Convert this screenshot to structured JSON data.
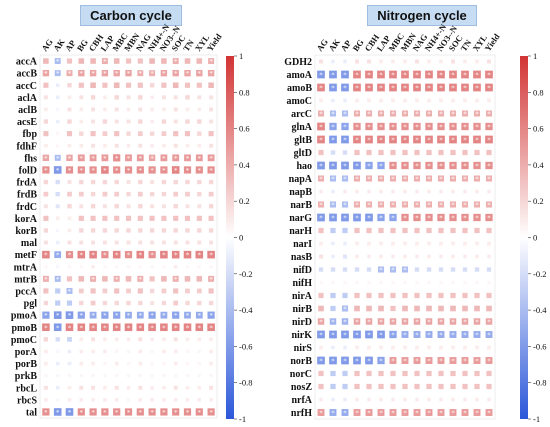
{
  "chart_data": [
    {
      "type": "heatmap",
      "title": "Carbon cycle",
      "columns": [
        "AG",
        "AK",
        "AP",
        "BG",
        "CBH",
        "LAP",
        "MBC",
        "MBN",
        "NAG",
        "NH4+-N",
        "NO3--N",
        "SOC",
        "TN",
        "XYL",
        "Yield"
      ],
      "rows": [
        "accA",
        "accB",
        "accC",
        "aclA",
        "aclB",
        "acsE",
        "fbp",
        "fdhF",
        "fhs",
        "folD",
        "frdA",
        "frdB",
        "frdC",
        "korA",
        "korB",
        "mal",
        "metF",
        "mtrA",
        "mtrB",
        "pccA",
        "pgl",
        "pmoA",
        "pmoB",
        "pmoC",
        "porA",
        "porB",
        "prkB",
        "rbcL",
        "rbcS",
        "tal"
      ],
      "colorbar": {
        "min": -1,
        "max": 1,
        "ticks": [
          1,
          0.8,
          0.6,
          0.4,
          0.2,
          0,
          -0.2,
          -0.4,
          -0.6,
          -0.8,
          -1
        ]
      },
      "significance_mark": "*",
      "values": [
        [
          0.35,
          -0.4,
          0.3,
          0.35,
          0.35,
          0.4,
          0.35,
          0.3,
          0.3,
          0.35,
          0.35,
          0.4,
          0.35,
          0.35,
          0.4
        ],
        [
          0.45,
          -0.4,
          0.4,
          0.45,
          0.45,
          0.45,
          0.45,
          0.45,
          0.4,
          0.4,
          0.45,
          0.45,
          0.45,
          0.45,
          0.45
        ],
        [
          0.3,
          -0.1,
          0.2,
          0.3,
          0.35,
          0.3,
          0.35,
          0.3,
          0.3,
          0.2,
          0.3,
          0.35,
          0.3,
          0.3,
          0.35
        ],
        [
          0.15,
          -0.1,
          0.1,
          0.15,
          0.2,
          0.1,
          0.2,
          0.15,
          0.2,
          0.1,
          0.15,
          0.15,
          0.2,
          0.15,
          0.15
        ],
        [
          0.1,
          -0.05,
          0.15,
          0.1,
          0.15,
          0.1,
          0.15,
          0.1,
          0.15,
          0.1,
          0.1,
          0.15,
          0.1,
          0.1,
          0.15
        ],
        [
          0.2,
          -0.1,
          0.2,
          0.1,
          0.15,
          0.2,
          0.15,
          0.15,
          0.2,
          0.1,
          0.2,
          0.15,
          0.2,
          0.2,
          0.15
        ],
        [
          0.3,
          0.05,
          0.3,
          0.2,
          0.3,
          0.25,
          0.3,
          0.2,
          0.25,
          0.2,
          0.25,
          0.3,
          0.3,
          0.2,
          0.3
        ],
        [
          0.1,
          0.05,
          0.1,
          0.1,
          0.15,
          0.1,
          0.15,
          0.1,
          0.15,
          0.1,
          0.1,
          0.15,
          0.1,
          0.1,
          0.15
        ],
        [
          0.45,
          -0.4,
          0.45,
          0.5,
          0.5,
          0.5,
          0.55,
          0.5,
          0.5,
          0.45,
          0.5,
          0.5,
          0.5,
          0.5,
          0.5
        ],
        [
          0.55,
          -0.6,
          0.55,
          0.55,
          0.55,
          0.6,
          0.55,
          0.55,
          0.55,
          0.55,
          0.55,
          0.6,
          0.55,
          0.55,
          0.55
        ],
        [
          0.2,
          -0.2,
          0.15,
          0.2,
          0.2,
          0.2,
          0.2,
          0.15,
          0.2,
          0.15,
          0.2,
          0.2,
          0.2,
          0.2,
          0.2
        ],
        [
          0.25,
          -0.2,
          0.25,
          0.25,
          0.2,
          0.25,
          0.25,
          0.2,
          0.25,
          0.2,
          0.2,
          0.25,
          0.25,
          0.2,
          0.25
        ],
        [
          0.15,
          -0.15,
          0.2,
          0.15,
          0.2,
          0.15,
          0.2,
          0.15,
          0.2,
          0.15,
          0.15,
          0.2,
          0.15,
          0.15,
          0.2
        ],
        [
          0.3,
          0.1,
          0.1,
          0.3,
          0.3,
          0.3,
          0.3,
          0.3,
          0.3,
          0.3,
          0.3,
          0.3,
          0.3,
          0.3,
          0.3
        ],
        [
          0.2,
          -0.05,
          0.1,
          0.2,
          0.2,
          0.2,
          0.2,
          0.2,
          0.2,
          0.2,
          0.2,
          0.2,
          0.2,
          0.2,
          0.2
        ],
        [
          0.15,
          -0.1,
          0.15,
          0.15,
          0.15,
          0.15,
          0.15,
          0.15,
          0.15,
          0.15,
          0.15,
          0.15,
          0.15,
          0.15,
          0.15
        ],
        [
          0.6,
          -0.5,
          0.55,
          0.6,
          0.6,
          0.55,
          0.6,
          0.55,
          0.6,
          0.55,
          0.6,
          0.6,
          0.6,
          0.6,
          0.6
        ],
        [
          0.05,
          -0.05,
          0.05,
          0.05,
          0.1,
          0.05,
          0.05,
          0.05,
          0.05,
          0.05,
          0.05,
          0.1,
          0.05,
          0.05,
          0.05
        ],
        [
          0.4,
          -0.4,
          0.3,
          0.35,
          0.4,
          0.35,
          0.4,
          0.35,
          0.4,
          0.3,
          0.35,
          0.4,
          0.35,
          0.35,
          0.4
        ],
        [
          0.3,
          -0.3,
          -0.4,
          0.25,
          0.3,
          0.25,
          0.3,
          0.25,
          0.3,
          0.2,
          0.25,
          0.3,
          0.25,
          0.25,
          0.3
        ],
        [
          0.2,
          -0.3,
          -0.3,
          0.2,
          0.25,
          0.2,
          0.2,
          0.2,
          0.2,
          0.15,
          0.2,
          0.25,
          0.2,
          0.2,
          0.2
        ],
        [
          -0.55,
          -0.6,
          -0.6,
          -0.55,
          -0.5,
          -0.55,
          -0.55,
          -0.5,
          -0.5,
          -0.55,
          -0.5,
          -0.55,
          -0.5,
          -0.5,
          -0.55
        ],
        [
          0.6,
          -0.6,
          0.6,
          0.6,
          0.6,
          0.6,
          0.6,
          0.6,
          0.6,
          0.6,
          0.6,
          0.6,
          0.6,
          0.6,
          0.6
        ],
        [
          0.2,
          -0.2,
          -0.25,
          0.1,
          0.15,
          0.1,
          0.1,
          0.1,
          0.15,
          0.1,
          0.1,
          0.15,
          0.1,
          0.1,
          0.1
        ],
        [
          0.1,
          -0.05,
          -0.1,
          0.1,
          0.1,
          0.1,
          0.05,
          0.05,
          0.1,
          0.05,
          0.1,
          0.1,
          0.05,
          0.05,
          0.1
        ],
        [
          0.1,
          -0.1,
          -0.1,
          0.1,
          0.1,
          0.05,
          0.1,
          0.05,
          0.1,
          0.05,
          0.05,
          0.1,
          0.05,
          0.05,
          0.1
        ],
        [
          0.05,
          -0.05,
          0.05,
          0.05,
          0.05,
          0.05,
          0.05,
          0.05,
          0.05,
          0.05,
          0.05,
          0.05,
          0.05,
          0.05,
          0.05
        ],
        [
          0.15,
          -0.1,
          0.1,
          0.15,
          0.15,
          0.1,
          0.15,
          0.1,
          0.15,
          0.1,
          0.1,
          0.15,
          0.1,
          0.1,
          0.15
        ],
        [
          0.1,
          -0.05,
          0.1,
          0.1,
          0.1,
          0.1,
          0.1,
          0.05,
          0.1,
          0.1,
          0.1,
          0.1,
          0.1,
          0.1,
          0.1
        ],
        [
          0.55,
          -0.6,
          -0.6,
          0.55,
          0.55,
          0.55,
          0.55,
          0.55,
          0.55,
          0.55,
          0.55,
          0.55,
          0.55,
          0.55,
          0.55
        ]
      ]
    },
    {
      "type": "heatmap",
      "title": "Nitrogen cycle",
      "columns": [
        "AG",
        "AK",
        "AP",
        "BG",
        "CBH",
        "LAP",
        "MBC",
        "MBN",
        "NAG",
        "NH4+-N",
        "NO3--N",
        "SOC",
        "TN",
        "XYL",
        "Yield"
      ],
      "rows": [
        "GDH2",
        "amoA",
        "amoB",
        "amoC",
        "arcC",
        "glnA",
        "gltB",
        "gltD",
        "hao",
        "napA",
        "napB",
        "narB",
        "narG",
        "narH",
        "narI",
        "nasB",
        "nifD",
        "nifH",
        "nirA",
        "nirB",
        "nirD",
        "nirK",
        "nirS",
        "norB",
        "norC",
        "nosZ",
        "nrfA",
        "nrfH"
      ],
      "colorbar": {
        "min": -1,
        "max": 1,
        "ticks": [
          1,
          0.8,
          0.6,
          0.4,
          0.2,
          0,
          -0.2,
          -0.4,
          -0.6,
          -0.8,
          -1
        ]
      },
      "significance_mark": "*",
      "values": [
        [
          0.15,
          -0.1,
          -0.1,
          0.15,
          0.15,
          0.1,
          0.1,
          0.1,
          0.15,
          0.1,
          0.1,
          0.15,
          0.1,
          0.1,
          0.15
        ],
        [
          -0.6,
          -0.6,
          -0.6,
          0.6,
          0.6,
          0.6,
          0.6,
          0.6,
          0.6,
          0.6,
          0.6,
          0.6,
          0.6,
          0.6,
          0.6
        ],
        [
          0.6,
          -0.6,
          -0.6,
          0.6,
          0.6,
          0.6,
          0.6,
          0.6,
          0.6,
          0.6,
          0.6,
          0.6,
          0.6,
          0.6,
          0.6
        ],
        [
          0.1,
          -0.1,
          -0.1,
          0.1,
          0.1,
          0.1,
          0.1,
          0.1,
          0.1,
          0.1,
          0.1,
          0.1,
          0.1,
          0.1,
          0.1
        ],
        [
          0.4,
          -0.4,
          -0.4,
          0.4,
          0.4,
          0.4,
          0.4,
          0.4,
          0.4,
          0.4,
          0.4,
          0.4,
          0.4,
          0.4,
          0.4
        ],
        [
          0.6,
          -0.55,
          -0.55,
          0.55,
          0.55,
          0.55,
          0.55,
          0.55,
          0.55,
          0.55,
          0.55,
          0.55,
          0.55,
          0.55,
          0.55
        ],
        [
          0.6,
          -0.6,
          -0.6,
          0.6,
          0.6,
          0.6,
          0.6,
          0.6,
          0.6,
          0.6,
          0.6,
          0.6,
          0.6,
          0.6,
          0.6
        ],
        [
          0.3,
          -0.2,
          -0.2,
          0.3,
          0.3,
          0.3,
          0.3,
          0.3,
          0.3,
          0.3,
          0.3,
          0.3,
          0.3,
          0.3,
          0.3
        ],
        [
          -0.6,
          -0.6,
          -0.6,
          -0.6,
          -0.55,
          -0.55,
          0.55,
          0.55,
          0.55,
          0.55,
          0.55,
          0.55,
          0.55,
          0.55,
          0.55
        ],
        [
          0.4,
          -0.4,
          -0.4,
          0.4,
          0.4,
          0.4,
          0.4,
          0.4,
          0.4,
          0.4,
          0.4,
          0.4,
          0.4,
          0.4,
          0.4
        ],
        [
          0.1,
          -0.1,
          0.1,
          0.1,
          0.1,
          0.1,
          0.1,
          0.1,
          0.1,
          0.1,
          0.1,
          0.1,
          0.1,
          0.1,
          0.1
        ],
        [
          0.4,
          -0.4,
          -0.4,
          0.4,
          0.4,
          0.4,
          0.4,
          0.4,
          0.4,
          0.4,
          0.4,
          0.4,
          0.4,
          0.4,
          0.4
        ],
        [
          -0.6,
          -0.6,
          -0.6,
          -0.6,
          -0.6,
          -0.55,
          -0.55,
          0.55,
          0.55,
          0.55,
          0.55,
          0.55,
          0.55,
          0.55,
          0.55
        ],
        [
          0.3,
          -0.3,
          -0.3,
          0.3,
          0.3,
          0.3,
          0.3,
          0.3,
          0.3,
          0.3,
          0.3,
          0.3,
          0.3,
          0.3,
          0.3
        ],
        [
          0.1,
          -0.1,
          -0.1,
          0.1,
          0.1,
          0.1,
          0.1,
          0.1,
          0.1,
          0.1,
          0.1,
          0.1,
          0.1,
          0.1,
          0.1
        ],
        [
          0.15,
          -0.1,
          -0.15,
          0.1,
          0.1,
          0.1,
          0.1,
          0.1,
          0.1,
          0.1,
          0.1,
          0.1,
          0.1,
          0.1,
          0.1
        ],
        [
          -0.2,
          -0.2,
          -0.2,
          -0.2,
          -0.2,
          -0.4,
          -0.4,
          -0.4,
          -0.2,
          -0.2,
          -0.2,
          -0.2,
          -0.2,
          -0.2,
          -0.2
        ],
        [
          0.05,
          0.05,
          0.05,
          0.05,
          0.05,
          0.05,
          0.05,
          0.05,
          0.05,
          0.05,
          0.05,
          0.05,
          0.05,
          0.05,
          0.05
        ],
        [
          0.3,
          -0.3,
          -0.3,
          0.3,
          0.3,
          0.3,
          0.3,
          0.3,
          0.3,
          0.3,
          0.3,
          0.3,
          0.3,
          0.3,
          0.3
        ],
        [
          0.35,
          -0.3,
          -0.4,
          0.35,
          0.35,
          0.35,
          0.3,
          0.35,
          0.35,
          0.35,
          0.35,
          0.35,
          0.35,
          0.35,
          0.35
        ],
        [
          0.45,
          -0.45,
          -0.45,
          0.45,
          0.45,
          0.45,
          0.45,
          0.45,
          0.45,
          0.45,
          0.45,
          0.45,
          0.45,
          0.45,
          0.45
        ],
        [
          -0.6,
          -0.6,
          -0.6,
          -0.6,
          -0.6,
          -0.6,
          -0.55,
          -0.5,
          -0.5,
          -0.5,
          -0.5,
          -0.5,
          -0.5,
          -0.5,
          -0.5
        ],
        [
          0.1,
          -0.1,
          -0.1,
          0.1,
          0.1,
          0.1,
          0.1,
          0.1,
          0.1,
          0.1,
          0.1,
          0.1,
          0.1,
          0.1,
          0.1
        ],
        [
          -0.6,
          -0.6,
          -0.6,
          -0.6,
          -0.6,
          -0.55,
          0.5,
          0.5,
          0.5,
          0.5,
          0.5,
          0.5,
          0.5,
          0.5,
          0.5
        ],
        [
          0.3,
          -0.3,
          -0.3,
          0.3,
          0.3,
          0.3,
          0.3,
          0.3,
          0.3,
          0.3,
          0.3,
          0.3,
          0.3,
          0.3,
          0.3
        ],
        [
          0.3,
          -0.3,
          -0.3,
          0.3,
          0.3,
          0.3,
          0.3,
          0.3,
          0.3,
          0.3,
          0.3,
          0.3,
          0.3,
          0.3,
          0.3
        ],
        [
          0.1,
          -0.1,
          -0.1,
          0.1,
          0.1,
          0.1,
          0.1,
          0.1,
          0.1,
          0.1,
          0.1,
          0.1,
          0.1,
          0.1,
          0.1
        ],
        [
          0.5,
          -0.5,
          -0.5,
          0.5,
          0.5,
          0.5,
          0.5,
          0.5,
          0.5,
          0.5,
          0.5,
          0.5,
          0.5,
          0.5,
          0.5
        ]
      ]
    }
  ],
  "colors": {
    "negative": "#2b57d9",
    "zero": "#ffffff",
    "positive": "#d23434"
  }
}
